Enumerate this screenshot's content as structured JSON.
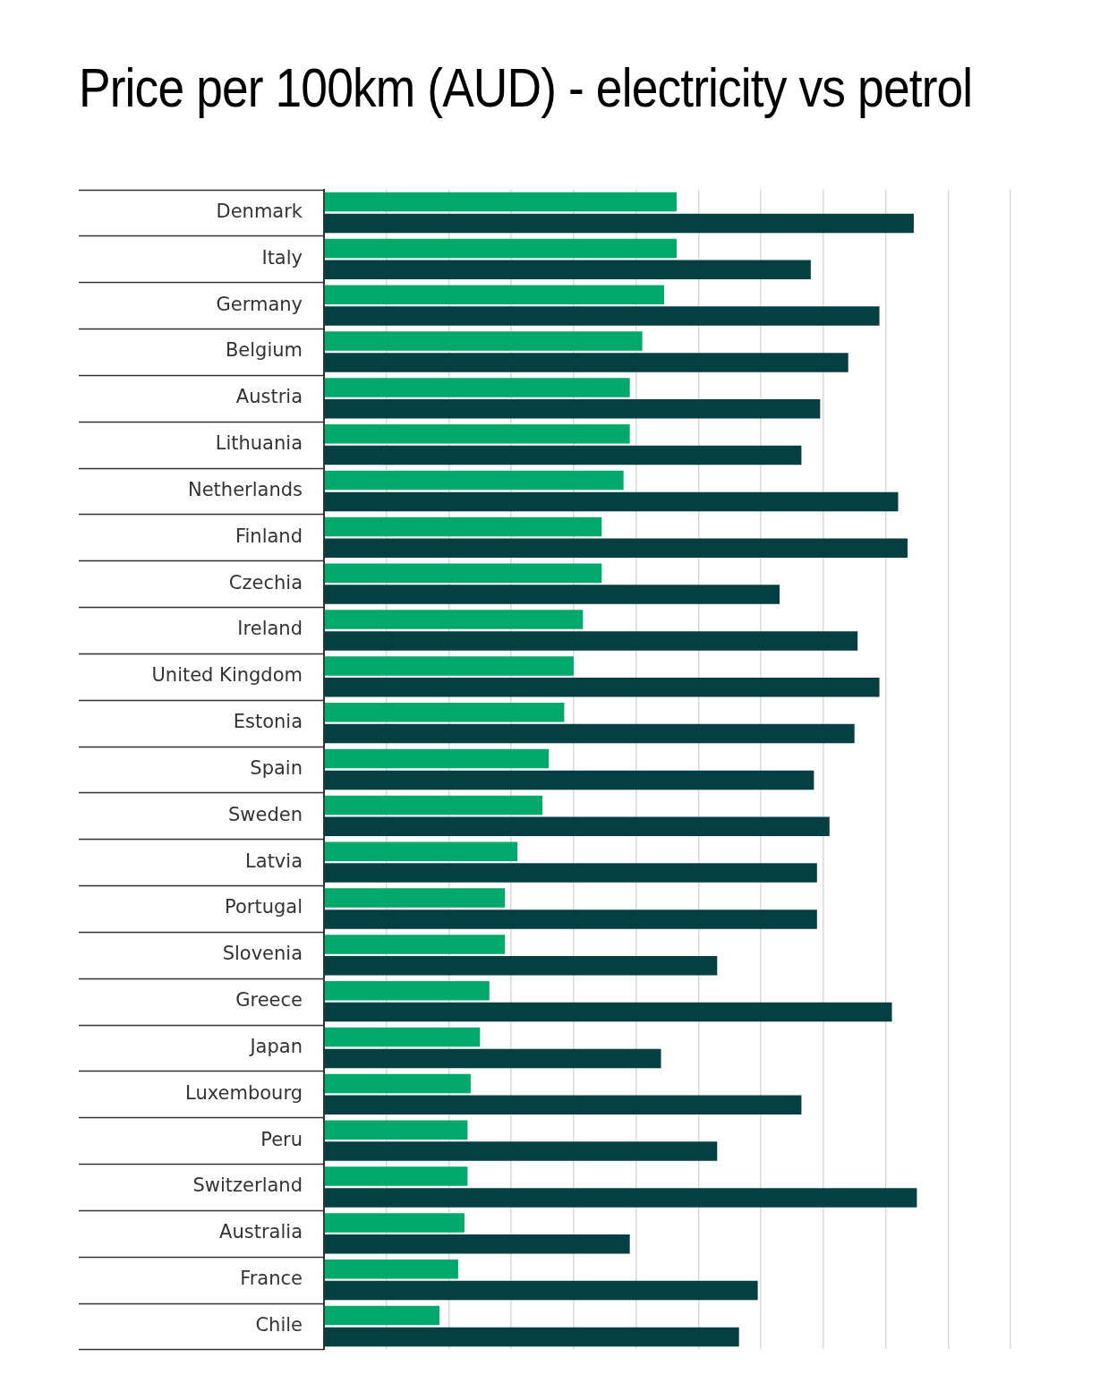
{
  "chart_data": {
    "type": "bar",
    "orientation": "horizontal",
    "title": "Price per 100km (AUD) - electricity vs petrol",
    "categories": [
      "Denmark",
      "Italy",
      "Germany",
      "Belgium",
      "Austria",
      "Lithuania",
      "Netherlands",
      "Finland",
      "Czechia",
      "Ireland",
      "United Kingdom",
      "Estonia",
      "Spain",
      "Sweden",
      "Latvia",
      "Portugal",
      "Slovenia",
      "Greece",
      "Japan",
      "Luxembourg",
      "Peru",
      "Switzerland",
      "Australia",
      "France",
      "Chile"
    ],
    "series": [
      {
        "color": "#00a86b",
        "values": [
          11.3,
          11.3,
          10.9,
          10.2,
          9.8,
          9.8,
          9.6,
          8.9,
          8.9,
          8.3,
          8.0,
          7.7,
          7.2,
          7.0,
          6.2,
          5.8,
          5.8,
          5.3,
          5.0,
          4.7,
          4.6,
          4.6,
          4.5,
          4.3,
          3.7
        ]
      },
      {
        "color": "#063f42",
        "values": [
          18.9,
          15.6,
          17.8,
          16.8,
          15.9,
          15.3,
          18.4,
          18.7,
          14.6,
          17.1,
          17.8,
          17.0,
          15.7,
          16.2,
          15.8,
          15.8,
          12.6,
          18.2,
          10.8,
          15.3,
          12.6,
          19.0,
          9.8,
          13.9,
          13.3
        ]
      }
    ],
    "xlim": [
      0,
      22
    ],
    "xticks": [
      0,
      2,
      4,
      6,
      8,
      10,
      12,
      14,
      16,
      18,
      20,
      22
    ],
    "grid": true,
    "tick_labels": "y"
  }
}
